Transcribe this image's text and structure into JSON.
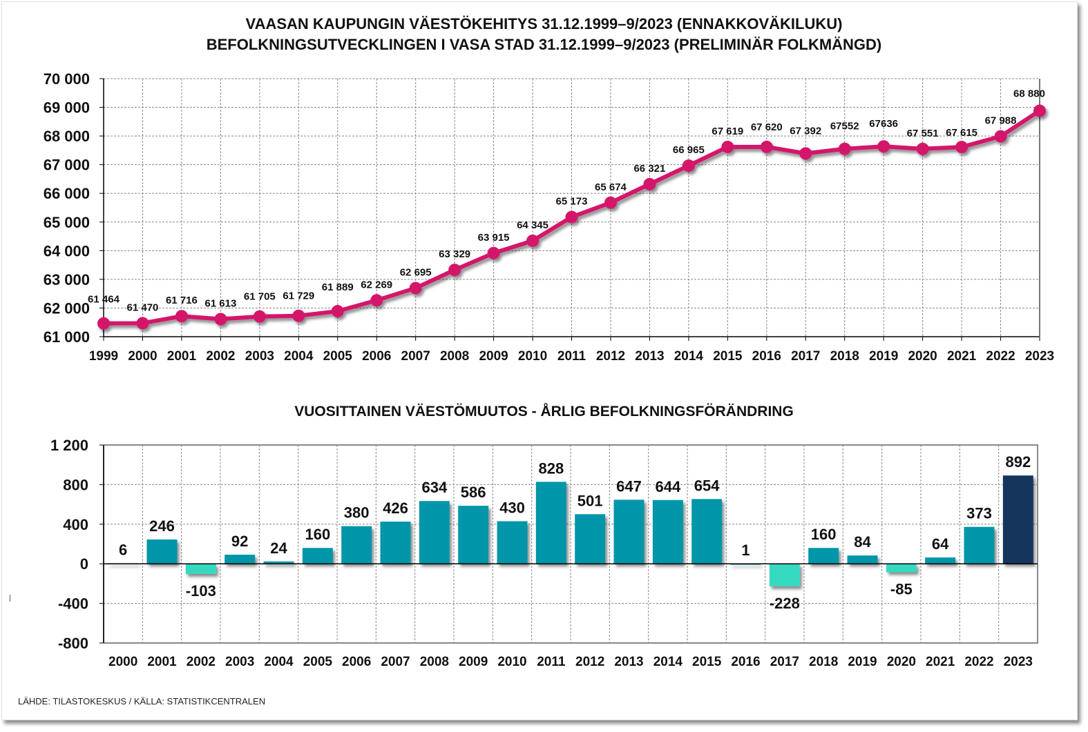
{
  "titles": {
    "line_title_fi": "VAASAN KAUPUNGIN VÄESTÖKEHITYS 31.12.1999–9/2023 (ENNAKKOVÄKILUKU)",
    "line_title_sv": "BEFOLKNINGSUTVECKLINGEN I VASA STAD 31.12.1999–9/2023 (PRELIMINÄR FOLKMÄNGD)",
    "bar_title": "VUOSITTAINEN VÄESTÖMUUTOS - ÅRLIG BEFOLKNINGSFÖRÄNDRING"
  },
  "source": "LÄHDE: TILASTOKESKUS / KÄLLA: STATISTIKCENTRALEN",
  "colors": {
    "line": "#d4136a",
    "bar_positive": "#0096aa",
    "bar_negative": "#35d9c0",
    "bar_highlight": "#17365d",
    "grid": "#888888"
  },
  "chart_data": [
    {
      "type": "line",
      "title": "VAASAN KAUPUNGIN VÄESTÖKEHITYS 31.12.1999–9/2023 (ENNAKKOVÄKILUKU) / BEFOLKNINGSUTVECKLINGEN I VASA STAD 31.12.1999–9/2023 (PRELIMINÄR FOLKMÄNGD)",
      "xlabel": "",
      "ylabel": "",
      "categories": [
        "1999",
        "2000",
        "2001",
        "2002",
        "2003",
        "2004",
        "2005",
        "2006",
        "2007",
        "2008",
        "2009",
        "2010",
        "2011",
        "2012",
        "2013",
        "2014",
        "2015",
        "2016",
        "2017",
        "2018",
        "2019",
        "2020",
        "2021",
        "2022",
        "2023"
      ],
      "values": [
        61464,
        61470,
        61716,
        61613,
        61705,
        61729,
        61889,
        62269,
        62695,
        63329,
        63915,
        64345,
        65173,
        65674,
        66321,
        66965,
        67619,
        67620,
        67392,
        67552,
        67636,
        67551,
        67615,
        67988,
        68880
      ],
      "data_labels": [
        "61 464",
        "61 470",
        "61 716",
        "61 613",
        "61 705",
        "61 729",
        "61 889",
        "62 269",
        "62 695",
        "63 329",
        "63 915",
        "64 345",
        "65 173",
        "65 674",
        "66 321",
        "66 965",
        "67 619",
        "67 620",
        "67 392",
        "67552",
        "67636",
        "67 551",
        "67 615",
        "67 988",
        "68 880"
      ],
      "ylim": [
        61000,
        70000
      ],
      "yticks": [
        61000,
        62000,
        63000,
        64000,
        65000,
        66000,
        67000,
        68000,
        69000,
        70000
      ],
      "ytick_labels": [
        "61 000",
        "62 000",
        "63 000",
        "64 000",
        "65 000",
        "66 000",
        "67 000",
        "68 000",
        "69 000",
        "70 000"
      ],
      "grid": true,
      "legend": "none"
    },
    {
      "type": "bar",
      "title": "VUOSITTAINEN VÄESTÖMUUTOS - ÅRLIG BEFOLKNINGSFÖRÄNDRING",
      "xlabel": "",
      "ylabel": "",
      "categories": [
        "2000",
        "2001",
        "2002",
        "2003",
        "2004",
        "2005",
        "2006",
        "2007",
        "2008",
        "2009",
        "2010",
        "2011",
        "2012",
        "2013",
        "2014",
        "2015",
        "2016",
        "2017",
        "2018",
        "2019",
        "2020",
        "2021",
        "2022",
        "2023"
      ],
      "values": [
        6,
        246,
        -103,
        92,
        24,
        160,
        380,
        426,
        634,
        586,
        430,
        828,
        501,
        647,
        644,
        654,
        1,
        -228,
        160,
        84,
        -85,
        64,
        373,
        892
      ],
      "highlight_last": true,
      "ylim": [
        -800,
        1200
      ],
      "yticks": [
        -800,
        -400,
        0,
        400,
        800,
        1200
      ],
      "ytick_labels": [
        "-800",
        "-400",
        "0",
        "400",
        "800",
        "1 200"
      ],
      "grid": true,
      "legend": "none"
    }
  ]
}
